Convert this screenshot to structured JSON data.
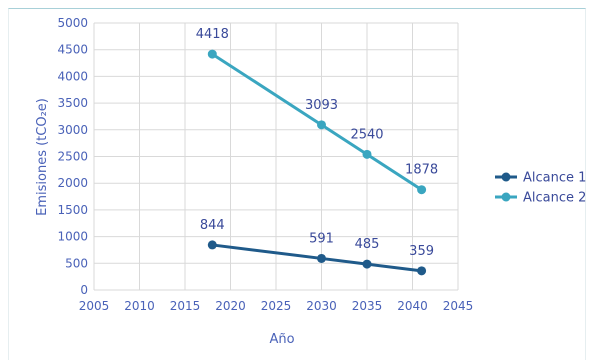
{
  "chart_data": {
    "type": "line",
    "title": "",
    "xlabel": "Año",
    "ylabel": "Emisiones (tCO₂e)",
    "xlim": [
      2005,
      2045
    ],
    "ylim": [
      0,
      5000
    ],
    "x_ticks": [
      "2005",
      "2010",
      "2015",
      "2020",
      "2025",
      "2030",
      "2035",
      "2040",
      "2045"
    ],
    "y_ticks": [
      "0",
      "500",
      "1000",
      "1500",
      "2000",
      "2500",
      "3000",
      "3500",
      "4000",
      "4500",
      "5000"
    ],
    "grid": true,
    "legend_position": "right",
    "series": [
      {
        "name": "Alcance 1",
        "color": "#1f5a8a",
        "points": [
          {
            "x": 2018,
            "y": 844,
            "label": "844"
          },
          {
            "x": 2030,
            "y": 591,
            "label": "591"
          },
          {
            "x": 2035,
            "y": 485,
            "label": "485"
          },
          {
            "x": 2041,
            "y": 359,
            "label": "359"
          }
        ]
      },
      {
        "name": "Alcance 2",
        "color": "#3aa6c0",
        "points": [
          {
            "x": 2018,
            "y": 4418,
            "label": "4418"
          },
          {
            "x": 2030,
            "y": 3093,
            "label": "3093"
          },
          {
            "x": 2035,
            "y": 2540,
            "label": "2540"
          },
          {
            "x": 2041,
            "y": 1878,
            "label": "1878"
          }
        ]
      }
    ]
  }
}
